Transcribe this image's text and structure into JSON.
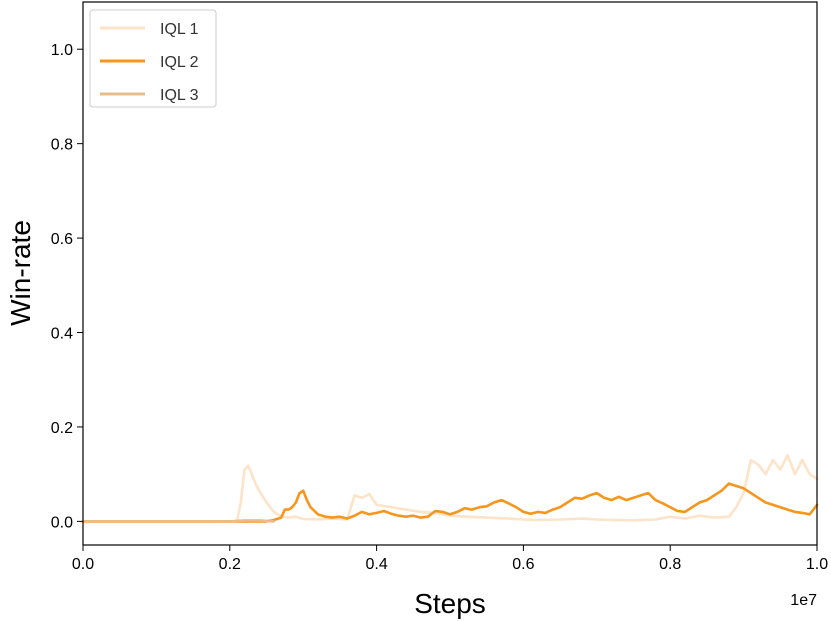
{
  "chart_data": {
    "type": "line",
    "xlabel": "Steps",
    "ylabel": "Win-rate",
    "x_offset_label": "1e7",
    "xlim": [
      0.0,
      1.0
    ],
    "ylim": [
      -0.05,
      1.1
    ],
    "x_ticks": [
      "0.0",
      "0.2",
      "0.4",
      "0.6",
      "0.8",
      "1.0"
    ],
    "y_ticks": [
      "0.0",
      "0.2",
      "0.4",
      "0.6",
      "0.8",
      "1.0"
    ],
    "legend_position": "top-left",
    "grid": false,
    "series": [
      {
        "name": "IQL 1",
        "color": "#fde3c8",
        "x": [
          0.0,
          0.2,
          0.205,
          0.21,
          0.215,
          0.22,
          0.225,
          0.23,
          0.235,
          0.24,
          0.25,
          0.26,
          0.27,
          0.28,
          0.29,
          0.3,
          0.32,
          0.34,
          0.36,
          0.37,
          0.38,
          0.39,
          0.4,
          0.42,
          0.44,
          0.46,
          0.48,
          0.5,
          0.52,
          0.55,
          0.58,
          0.6,
          0.62,
          0.65,
          0.68,
          0.7,
          0.72,
          0.75,
          0.78,
          0.8,
          0.82,
          0.84,
          0.86,
          0.88,
          0.89,
          0.9,
          0.91,
          0.92,
          0.93,
          0.94,
          0.95,
          0.96,
          0.97,
          0.98,
          0.99,
          1.0
        ],
        "y": [
          0.0,
          0.0,
          0.0,
          0.002,
          0.04,
          0.11,
          0.118,
          0.1,
          0.08,
          0.065,
          0.04,
          0.02,
          0.01,
          0.008,
          0.01,
          0.005,
          0.004,
          0.006,
          0.004,
          0.055,
          0.05,
          0.058,
          0.035,
          0.03,
          0.025,
          0.02,
          0.018,
          0.012,
          0.01,
          0.008,
          0.006,
          0.004,
          0.003,
          0.004,
          0.006,
          0.004,
          0.003,
          0.002,
          0.004,
          0.01,
          0.006,
          0.012,
          0.008,
          0.01,
          0.03,
          0.06,
          0.13,
          0.12,
          0.1,
          0.13,
          0.11,
          0.14,
          0.1,
          0.13,
          0.1,
          0.09
        ]
      },
      {
        "name": "IQL 2",
        "color": "#f7951c",
        "x": [
          0.0,
          0.24,
          0.25,
          0.26,
          0.27,
          0.275,
          0.28,
          0.285,
          0.29,
          0.295,
          0.3,
          0.305,
          0.31,
          0.32,
          0.33,
          0.34,
          0.35,
          0.36,
          0.37,
          0.38,
          0.39,
          0.4,
          0.41,
          0.42,
          0.43,
          0.44,
          0.45,
          0.46,
          0.47,
          0.48,
          0.49,
          0.5,
          0.51,
          0.52,
          0.53,
          0.54,
          0.55,
          0.56,
          0.57,
          0.58,
          0.59,
          0.6,
          0.61,
          0.62,
          0.63,
          0.64,
          0.65,
          0.66,
          0.67,
          0.68,
          0.69,
          0.7,
          0.71,
          0.72,
          0.73,
          0.74,
          0.75,
          0.76,
          0.77,
          0.78,
          0.79,
          0.8,
          0.81,
          0.82,
          0.83,
          0.84,
          0.85,
          0.86,
          0.87,
          0.88,
          0.89,
          0.9,
          0.91,
          0.92,
          0.93,
          0.94,
          0.95,
          0.96,
          0.97,
          0.98,
          0.99,
          1.0
        ],
        "y": [
          0.0,
          0.0,
          0.0,
          0.003,
          0.008,
          0.025,
          0.025,
          0.03,
          0.04,
          0.06,
          0.065,
          0.045,
          0.03,
          0.015,
          0.01,
          0.008,
          0.01,
          0.006,
          0.012,
          0.02,
          0.015,
          0.018,
          0.022,
          0.016,
          0.012,
          0.01,
          0.012,
          0.008,
          0.01,
          0.022,
          0.02,
          0.015,
          0.02,
          0.028,
          0.025,
          0.03,
          0.032,
          0.04,
          0.045,
          0.038,
          0.03,
          0.02,
          0.016,
          0.02,
          0.018,
          0.025,
          0.03,
          0.04,
          0.05,
          0.048,
          0.055,
          0.06,
          0.05,
          0.045,
          0.052,
          0.045,
          0.05,
          0.055,
          0.06,
          0.045,
          0.038,
          0.03,
          0.022,
          0.02,
          0.03,
          0.04,
          0.045,
          0.055,
          0.065,
          0.08,
          0.075,
          0.07,
          0.06,
          0.05,
          0.04,
          0.035,
          0.03,
          0.025,
          0.02,
          0.018,
          0.015,
          0.035
        ]
      },
      {
        "name": "IQL 3",
        "color": "#e6be8a",
        "x": [
          0.0,
          0.2,
          0.22,
          0.24,
          0.25,
          0.26
        ],
        "y": [
          0.0,
          0.0,
          0.002,
          0.002,
          0.001,
          0.0
        ]
      }
    ]
  }
}
